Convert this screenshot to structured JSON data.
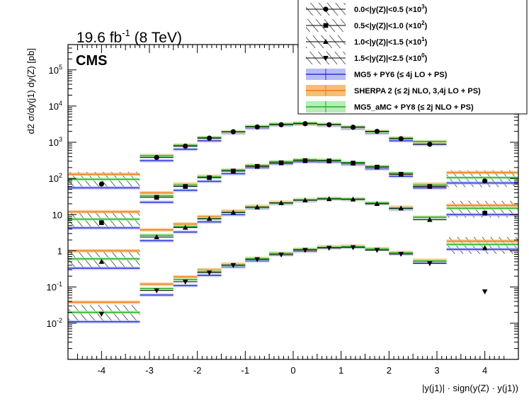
{
  "header": {
    "lumi_label": "19.6 fb",
    "lumi_sup": "-1",
    "lumi_energy": " (8 TeV)",
    "experiment": "CMS"
  },
  "legend": {
    "entries": [
      {
        "kind": "data",
        "marker": "circle",
        "range": "0.0<|y(Z)|<0.5",
        "scale": "10",
        "scale_sup": "3"
      },
      {
        "kind": "data",
        "marker": "square",
        "range": "0.5<|y(Z)|<1.0",
        "scale": "10",
        "scale_sup": "2"
      },
      {
        "kind": "data",
        "marker": "triangle-up",
        "range": "1.0<|y(Z)|<1.5",
        "scale": "10",
        "scale_sup": "1"
      },
      {
        "kind": "data",
        "marker": "triangle-down",
        "range": "1.5<|y(Z)|<2.5",
        "scale": "10",
        "scale_sup": "0"
      },
      {
        "kind": "model",
        "label": "MG5 + PY6 (≤ 4j LO + PS)",
        "color": "#2b35d6",
        "band": "#b9bcf2"
      },
      {
        "kind": "model",
        "label": "SHERPA 2 (≤ 2j NLO, 3,4j LO + PS)",
        "color": "#f07a1a",
        "band": "#f9bd73"
      },
      {
        "kind": "model",
        "label": "MG5_aMC + PY8 (≤ 2j NLO + PS)",
        "color": "#1fb01f",
        "band": "#b6ecb6"
      }
    ]
  },
  "chart_data": {
    "type": "scatter",
    "title": "",
    "xlabel": "|y(j1)| · sign(y(Z) · y(j1))",
    "ylabel": "d2 σ/dy(j1) dy(Z) [pb]",
    "xlim": [
      -4.7,
      4.7
    ],
    "ylim": [
      0.001,
      500000
    ],
    "log_y": true,
    "grid": false,
    "legend_position": "top-right",
    "x_ticks": [
      -4,
      -3,
      -2,
      -1,
      0,
      1,
      2,
      3,
      4
    ],
    "y_ticks": [
      {
        "value": 0.01,
        "base": "10",
        "sup": "-2"
      },
      {
        "value": 0.1,
        "base": "10",
        "sup": "-1"
      },
      {
        "value": 1,
        "base": "1",
        "sup": ""
      },
      {
        "value": 10,
        "base": "10",
        "sup": ""
      },
      {
        "value": 100,
        "base": "10",
        "sup": "2"
      },
      {
        "value": 1000,
        "base": "10",
        "sup": "3"
      },
      {
        "value": 10000,
        "base": "10",
        "sup": "4"
      },
      {
        "value": 100000,
        "base": "10",
        "sup": "5"
      }
    ],
    "bin_edges": [
      -4.7,
      -3.2,
      -2.5,
      -2.0,
      -1.5,
      -1.0,
      -0.5,
      0.0,
      0.5,
      1.0,
      1.5,
      2.0,
      2.5,
      3.2,
      4.7
    ],
    "series": [
      {
        "name": "0.0<|y(Z)|<0.5 (×10^3)",
        "marker": "circle",
        "data": [
          null,
          380,
          780,
          1300,
          1950,
          2650,
          3050,
          3250,
          3050,
          2600,
          2000,
          1250,
          880,
          null
        ],
        "data_points": [
          {
            "x": -4,
            "y": 70
          },
          {
            "x": 4,
            "y": 85
          }
        ],
        "mg5": [
          55,
          310,
          640,
          1100,
          1780,
          2450,
          2950,
          3150,
          2900,
          2400,
          1780,
          1100,
          880,
          75
        ],
        "sherpa": [
          130,
          430,
          830,
          1300,
          1900,
          2700,
          3150,
          3300,
          3100,
          2600,
          2000,
          1300,
          1000,
          145
        ],
        "amc": [
          95,
          420,
          830,
          1350,
          1950,
          2750,
          3200,
          3400,
          3150,
          2650,
          1950,
          1300,
          1050,
          105
        ],
        "unc_bins": [
          0,
          13
        ]
      },
      {
        "name": "0.5<|y(Z)|<1.0 (×10^2)",
        "marker": "square",
        "data": [
          null,
          30,
          60,
          105,
          160,
          215,
          270,
          310,
          305,
          265,
          205,
          130,
          60,
          null
        ],
        "data_points": [
          {
            "x": -4,
            "y": 6
          },
          {
            "x": 4,
            "y": 11
          }
        ],
        "mg5": [
          4.3,
          22,
          47,
          83,
          135,
          200,
          255,
          290,
          285,
          245,
          185,
          115,
          55,
          10
        ],
        "sherpa": [
          12,
          40,
          70,
          115,
          170,
          225,
          285,
          325,
          315,
          270,
          210,
          135,
          70,
          18
        ],
        "amc": [
          7.5,
          33,
          65,
          110,
          170,
          230,
          290,
          330,
          320,
          275,
          215,
          140,
          65,
          15
        ],
        "unc_bins": [
          0,
          13
        ]
      },
      {
        "name": "1.0<|y(Z)|<1.5 (×10^1)",
        "marker": "triangle-up",
        "data": [
          null,
          2.4,
          4.4,
          7.7,
          11.5,
          16,
          21,
          25,
          27,
          26.5,
          20,
          15,
          7.2,
          null
        ],
        "data_points": [
          {
            "x": -4,
            "y": 0.5
          },
          {
            "x": 4,
            "y": 1.2
          }
        ],
        "mg5": [
          0.33,
          1.9,
          3.3,
          6.3,
          10,
          15,
          20,
          24,
          27,
          26,
          20,
          14,
          8,
          1.1
        ],
        "sherpa": [
          1.0,
          3.8,
          5.5,
          8.8,
          12.5,
          17,
          22,
          26,
          28,
          27,
          21,
          16,
          8.5,
          1.85
        ],
        "amc": [
          0.6,
          2.7,
          4.7,
          7.7,
          11.5,
          16,
          21,
          25.5,
          28,
          27,
          21,
          15,
          8.5,
          1.5
        ],
        "unc_bins": [
          0,
          13
        ]
      },
      {
        "name": "1.5<|y(Z)|<2.5 (×10^0)",
        "marker": "triangle-down",
        "data": [
          null,
          0.08,
          0.14,
          0.25,
          0.4,
          0.58,
          0.78,
          1.05,
          1.2,
          1.25,
          1.05,
          0.82,
          0.45,
          null
        ],
        "data_points": [
          {
            "x": -4,
            "y": 0.018
          },
          {
            "x": 4,
            "y": 0.075
          }
        ],
        "mg5": [
          0.011,
          0.06,
          0.11,
          0.21,
          0.36,
          0.53,
          0.78,
          0.98,
          1.2,
          1.25,
          1.1,
          0.82,
          0.48,
          null
        ],
        "sherpa": [
          0.038,
          0.12,
          0.19,
          0.3,
          0.43,
          0.62,
          0.86,
          1.1,
          1.3,
          1.35,
          1.15,
          0.9,
          0.55,
          null
        ],
        "amc": [
          0.02,
          0.09,
          0.16,
          0.27,
          0.4,
          0.6,
          0.84,
          1.1,
          1.25,
          1.3,
          1.12,
          0.88,
          0.52,
          null
        ],
        "unc_bins": [
          0,
          13
        ]
      }
    ]
  }
}
